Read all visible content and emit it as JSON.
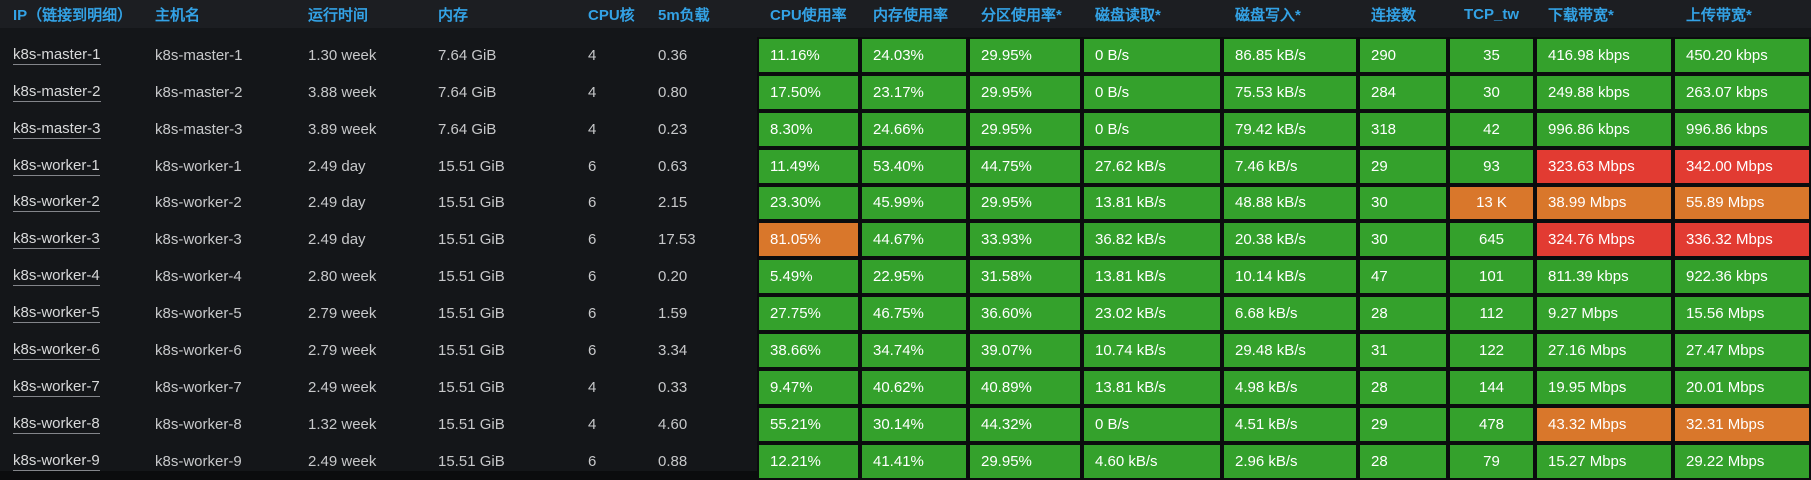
{
  "panel": {
    "type": "node-metrics-table"
  },
  "colors": {
    "green": "#34a12c",
    "orange": "#d9772b",
    "red": "#e23b32",
    "header_text": "#33a2e5",
    "header_bg": "#1c1e22",
    "body_bg": "#141619",
    "gap_bg": "#0b0c0e",
    "text": "#c7c8ca",
    "status_text": "#ffffff"
  },
  "table": {
    "columns": [
      {
        "id": "ip",
        "label": "IP（链接到明细）",
        "kind": "link",
        "align": "left"
      },
      {
        "id": "hostname",
        "label": "主机名",
        "kind": "text",
        "align": "left"
      },
      {
        "id": "uptime",
        "label": "运行时间",
        "kind": "text",
        "align": "left"
      },
      {
        "id": "memory",
        "label": "内存",
        "kind": "text",
        "align": "left"
      },
      {
        "id": "cpu_cores",
        "label": "CPU核",
        "kind": "text",
        "align": "left"
      },
      {
        "id": "load_5m",
        "label": "5m负载",
        "kind": "text",
        "align": "left"
      },
      {
        "id": "cpu_usage",
        "label": "CPU使用率",
        "kind": "status",
        "align": "left"
      },
      {
        "id": "mem_usage",
        "label": "内存使用率",
        "kind": "status",
        "align": "left"
      },
      {
        "id": "partition_usage",
        "label": "分区使用率*",
        "kind": "status",
        "align": "left"
      },
      {
        "id": "disk_read",
        "label": "磁盘读取*",
        "kind": "status",
        "align": "left"
      },
      {
        "id": "disk_write",
        "label": "磁盘写入*",
        "kind": "status",
        "align": "left"
      },
      {
        "id": "connections",
        "label": "连接数",
        "kind": "status",
        "align": "left"
      },
      {
        "id": "tcp_tw",
        "label": "TCP_tw",
        "kind": "status",
        "align": "center"
      },
      {
        "id": "download_bw",
        "label": "下载带宽*",
        "kind": "status",
        "align": "left"
      },
      {
        "id": "upload_bw",
        "label": "上传带宽*",
        "kind": "status",
        "align": "left"
      }
    ],
    "rows": [
      {
        "ip": "k8s-master-1",
        "hostname": "k8s-master-1",
        "uptime": "1.30 week",
        "memory": "7.64 GiB",
        "cpu_cores": "4",
        "load_5m": "0.36",
        "cpu_usage": {
          "text": "11.16%",
          "level": "green"
        },
        "mem_usage": {
          "text": "24.03%",
          "level": "green"
        },
        "partition_usage": {
          "text": "29.95%",
          "level": "green"
        },
        "disk_read": {
          "text": "0 B/s",
          "level": "green"
        },
        "disk_write": {
          "text": "86.85 kB/s",
          "level": "green"
        },
        "connections": {
          "text": "290",
          "level": "green"
        },
        "tcp_tw": {
          "text": "35",
          "level": "green"
        },
        "download_bw": {
          "text": "416.98 kbps",
          "level": "green"
        },
        "upload_bw": {
          "text": "450.20 kbps",
          "level": "green"
        }
      },
      {
        "ip": "k8s-master-2",
        "hostname": "k8s-master-2",
        "uptime": "3.88 week",
        "memory": "7.64 GiB",
        "cpu_cores": "4",
        "load_5m": "0.80",
        "cpu_usage": {
          "text": "17.50%",
          "level": "green"
        },
        "mem_usage": {
          "text": "23.17%",
          "level": "green"
        },
        "partition_usage": {
          "text": "29.95%",
          "level": "green"
        },
        "disk_read": {
          "text": "0 B/s",
          "level": "green"
        },
        "disk_write": {
          "text": "75.53 kB/s",
          "level": "green"
        },
        "connections": {
          "text": "284",
          "level": "green"
        },
        "tcp_tw": {
          "text": "30",
          "level": "green"
        },
        "download_bw": {
          "text": "249.88 kbps",
          "level": "green"
        },
        "upload_bw": {
          "text": "263.07 kbps",
          "level": "green"
        }
      },
      {
        "ip": "k8s-master-3",
        "hostname": "k8s-master-3",
        "uptime": "3.89 week",
        "memory": "7.64 GiB",
        "cpu_cores": "4",
        "load_5m": "0.23",
        "cpu_usage": {
          "text": "8.30%",
          "level": "green"
        },
        "mem_usage": {
          "text": "24.66%",
          "level": "green"
        },
        "partition_usage": {
          "text": "29.95%",
          "level": "green"
        },
        "disk_read": {
          "text": "0 B/s",
          "level": "green"
        },
        "disk_write": {
          "text": "79.42 kB/s",
          "level": "green"
        },
        "connections": {
          "text": "318",
          "level": "green"
        },
        "tcp_tw": {
          "text": "42",
          "level": "green"
        },
        "download_bw": {
          "text": "996.86 kbps",
          "level": "green"
        },
        "upload_bw": {
          "text": "996.86 kbps",
          "level": "green"
        }
      },
      {
        "ip": "k8s-worker-1",
        "hostname": "k8s-worker-1",
        "uptime": "2.49 day",
        "memory": "15.51 GiB",
        "cpu_cores": "6",
        "load_5m": "0.63",
        "cpu_usage": {
          "text": "11.49%",
          "level": "green"
        },
        "mem_usage": {
          "text": "53.40%",
          "level": "green"
        },
        "partition_usage": {
          "text": "44.75%",
          "level": "green"
        },
        "disk_read": {
          "text": "27.62 kB/s",
          "level": "green"
        },
        "disk_write": {
          "text": "7.46 kB/s",
          "level": "green"
        },
        "connections": {
          "text": "29",
          "level": "green"
        },
        "tcp_tw": {
          "text": "93",
          "level": "green"
        },
        "download_bw": {
          "text": "323.63 Mbps",
          "level": "red"
        },
        "upload_bw": {
          "text": "342.00 Mbps",
          "level": "red"
        }
      },
      {
        "ip": "k8s-worker-2",
        "hostname": "k8s-worker-2",
        "uptime": "2.49 day",
        "memory": "15.51 GiB",
        "cpu_cores": "6",
        "load_5m": "2.15",
        "cpu_usage": {
          "text": "23.30%",
          "level": "green"
        },
        "mem_usage": {
          "text": "45.99%",
          "level": "green"
        },
        "partition_usage": {
          "text": "29.95%",
          "level": "green"
        },
        "disk_read": {
          "text": "13.81 kB/s",
          "level": "green"
        },
        "disk_write": {
          "text": "48.88 kB/s",
          "level": "green"
        },
        "connections": {
          "text": "30",
          "level": "green"
        },
        "tcp_tw": {
          "text": "13 K",
          "level": "orange"
        },
        "download_bw": {
          "text": "38.99 Mbps",
          "level": "orange"
        },
        "upload_bw": {
          "text": "55.89 Mbps",
          "level": "orange"
        }
      },
      {
        "ip": "k8s-worker-3",
        "hostname": "k8s-worker-3",
        "uptime": "2.49 day",
        "memory": "15.51 GiB",
        "cpu_cores": "6",
        "load_5m": "17.53",
        "cpu_usage": {
          "text": "81.05%",
          "level": "orange"
        },
        "mem_usage": {
          "text": "44.67%",
          "level": "green"
        },
        "partition_usage": {
          "text": "33.93%",
          "level": "green"
        },
        "disk_read": {
          "text": "36.82 kB/s",
          "level": "green"
        },
        "disk_write": {
          "text": "20.38 kB/s",
          "level": "green"
        },
        "connections": {
          "text": "30",
          "level": "green"
        },
        "tcp_tw": {
          "text": "645",
          "level": "green"
        },
        "download_bw": {
          "text": "324.76 Mbps",
          "level": "red"
        },
        "upload_bw": {
          "text": "336.32 Mbps",
          "level": "red"
        }
      },
      {
        "ip": "k8s-worker-4",
        "hostname": "k8s-worker-4",
        "uptime": "2.80 week",
        "memory": "15.51 GiB",
        "cpu_cores": "6",
        "load_5m": "0.20",
        "cpu_usage": {
          "text": "5.49%",
          "level": "green"
        },
        "mem_usage": {
          "text": "22.95%",
          "level": "green"
        },
        "partition_usage": {
          "text": "31.58%",
          "level": "green"
        },
        "disk_read": {
          "text": "13.81 kB/s",
          "level": "green"
        },
        "disk_write": {
          "text": "10.14 kB/s",
          "level": "green"
        },
        "connections": {
          "text": "47",
          "level": "green"
        },
        "tcp_tw": {
          "text": "101",
          "level": "green"
        },
        "download_bw": {
          "text": "811.39 kbps",
          "level": "green"
        },
        "upload_bw": {
          "text": "922.36 kbps",
          "level": "green"
        }
      },
      {
        "ip": "k8s-worker-5",
        "hostname": "k8s-worker-5",
        "uptime": "2.79 week",
        "memory": "15.51 GiB",
        "cpu_cores": "6",
        "load_5m": "1.59",
        "cpu_usage": {
          "text": "27.75%",
          "level": "green"
        },
        "mem_usage": {
          "text": "46.75%",
          "level": "green"
        },
        "partition_usage": {
          "text": "36.60%",
          "level": "green"
        },
        "disk_read": {
          "text": "23.02 kB/s",
          "level": "green"
        },
        "disk_write": {
          "text": "6.68 kB/s",
          "level": "green"
        },
        "connections": {
          "text": "28",
          "level": "green"
        },
        "tcp_tw": {
          "text": "112",
          "level": "green"
        },
        "download_bw": {
          "text": "9.27 Mbps",
          "level": "green"
        },
        "upload_bw": {
          "text": "15.56 Mbps",
          "level": "green"
        }
      },
      {
        "ip": "k8s-worker-6",
        "hostname": "k8s-worker-6",
        "uptime": "2.79 week",
        "memory": "15.51 GiB",
        "cpu_cores": "6",
        "load_5m": "3.34",
        "cpu_usage": {
          "text": "38.66%",
          "level": "green"
        },
        "mem_usage": {
          "text": "34.74%",
          "level": "green"
        },
        "partition_usage": {
          "text": "39.07%",
          "level": "green"
        },
        "disk_read": {
          "text": "10.74 kB/s",
          "level": "green"
        },
        "disk_write": {
          "text": "29.48 kB/s",
          "level": "green"
        },
        "connections": {
          "text": "31",
          "level": "green"
        },
        "tcp_tw": {
          "text": "122",
          "level": "green"
        },
        "download_bw": {
          "text": "27.16 Mbps",
          "level": "green"
        },
        "upload_bw": {
          "text": "27.47 Mbps",
          "level": "green"
        }
      },
      {
        "ip": "k8s-worker-7",
        "hostname": "k8s-worker-7",
        "uptime": "2.49 week",
        "memory": "15.51 GiB",
        "cpu_cores": "4",
        "load_5m": "0.33",
        "cpu_usage": {
          "text": "9.47%",
          "level": "green"
        },
        "mem_usage": {
          "text": "40.62%",
          "level": "green"
        },
        "partition_usage": {
          "text": "40.89%",
          "level": "green"
        },
        "disk_read": {
          "text": "13.81 kB/s",
          "level": "green"
        },
        "disk_write": {
          "text": "4.98 kB/s",
          "level": "green"
        },
        "connections": {
          "text": "28",
          "level": "green"
        },
        "tcp_tw": {
          "text": "144",
          "level": "green"
        },
        "download_bw": {
          "text": "19.95 Mbps",
          "level": "green"
        },
        "upload_bw": {
          "text": "20.01 Mbps",
          "level": "green"
        }
      },
      {
        "ip": "k8s-worker-8",
        "hostname": "k8s-worker-8",
        "uptime": "1.32 week",
        "memory": "15.51 GiB",
        "cpu_cores": "4",
        "load_5m": "4.60",
        "cpu_usage": {
          "text": "55.21%",
          "level": "green"
        },
        "mem_usage": {
          "text": "30.14%",
          "level": "green"
        },
        "partition_usage": {
          "text": "44.32%",
          "level": "green"
        },
        "disk_read": {
          "text": "0 B/s",
          "level": "green"
        },
        "disk_write": {
          "text": "4.51 kB/s",
          "level": "green"
        },
        "connections": {
          "text": "29",
          "level": "green"
        },
        "tcp_tw": {
          "text": "478",
          "level": "green"
        },
        "download_bw": {
          "text": "43.32 Mbps",
          "level": "orange"
        },
        "upload_bw": {
          "text": "32.31 Mbps",
          "level": "orange"
        }
      },
      {
        "ip": "k8s-worker-9",
        "hostname": "k8s-worker-9",
        "uptime": "2.49 week",
        "memory": "15.51 GiB",
        "cpu_cores": "6",
        "load_5m": "0.88",
        "cpu_usage": {
          "text": "12.21%",
          "level": "green"
        },
        "mem_usage": {
          "text": "41.41%",
          "level": "green"
        },
        "partition_usage": {
          "text": "29.95%",
          "level": "green"
        },
        "disk_read": {
          "text": "4.60 kB/s",
          "level": "green"
        },
        "disk_write": {
          "text": "2.96 kB/s",
          "level": "green"
        },
        "connections": {
          "text": "28",
          "level": "green"
        },
        "tcp_tw": {
          "text": "79",
          "level": "green"
        },
        "download_bw": {
          "text": "15.27 Mbps",
          "level": "green"
        },
        "upload_bw": {
          "text": "29.22 Mbps",
          "level": "green"
        }
      }
    ]
  }
}
